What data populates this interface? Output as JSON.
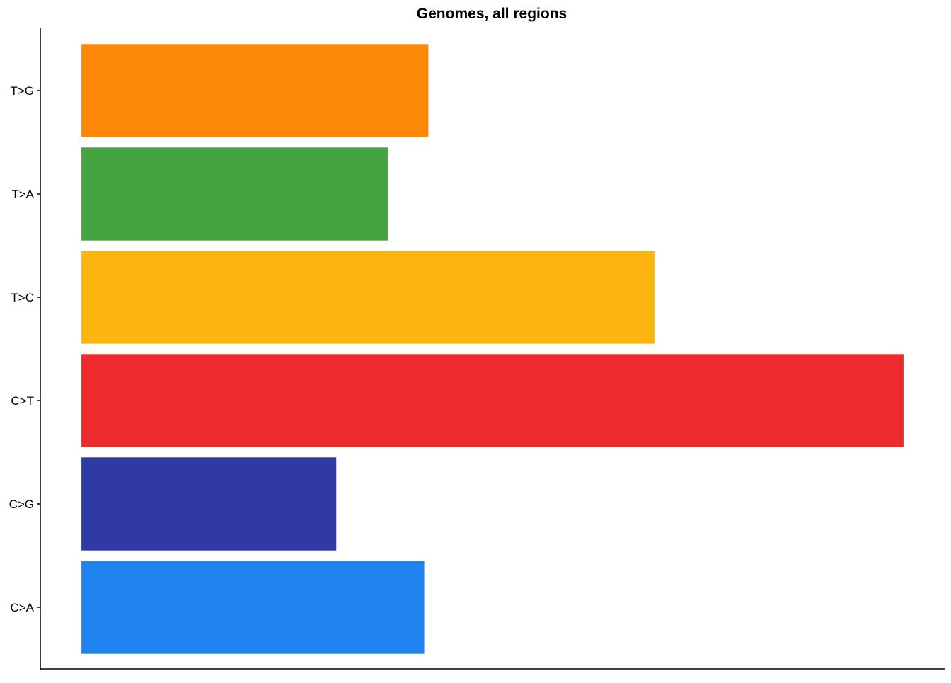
{
  "chart_data": {
    "type": "bar",
    "orientation": "horizontal",
    "title": "Genomes, all regions",
    "xlabel": "",
    "ylabel": "",
    "categories": [
      "C>A",
      "C>G",
      "C>T",
      "T>C",
      "T>A",
      "T>G"
    ],
    "values": [
      0.417,
      0.31,
      1.0,
      0.697,
      0.373,
      0.422
    ],
    "colors": [
      "#1f82ef",
      "#303aa4",
      "#ee2b2c",
      "#fcb40f",
      "#45a341",
      "#fd8709"
    ],
    "xlim": [
      -0.05,
      1.05
    ],
    "grid": false,
    "legend": "none",
    "x_ticks_shown": false
  }
}
